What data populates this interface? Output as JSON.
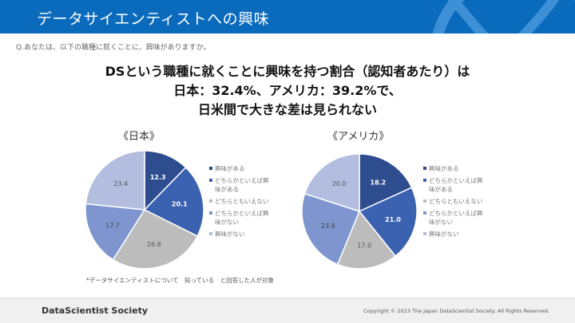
{
  "header": {
    "title": "データサイエンティストへの興味"
  },
  "question": "Q.あなたは、以下の職種に就くことに、興味がありますか。",
  "headline": [
    "DSという職種に就くことに興味を持つ割合（認知者あたり）は",
    "日本：32.4%、アメリカ：39.2%で、",
    "日米間で大きな差は見られない"
  ],
  "colors": [
    "#2e4d8e",
    "#3b62b0",
    "#bcbcbc",
    "#7e95cf",
    "#b3bde0"
  ],
  "chart_data": [
    {
      "type": "pie",
      "title": "《日本》",
      "categories": [
        "興味がある",
        "どちらかといえば興味がある",
        "どちらともいえない",
        "どちらかといえば興味がない",
        "興味がない"
      ],
      "values": [
        12.3,
        20.1,
        26.6,
        17.7,
        23.4
      ],
      "legend": "right"
    },
    {
      "type": "pie",
      "title": "《アメリカ》",
      "categories": [
        "興味がある",
        "どちらかといえば興味がある",
        "どちらともいえない",
        "どちらかといえば興味がない",
        "興味がない"
      ],
      "values": [
        18.2,
        21.0,
        17.0,
        23.8,
        20.0
      ],
      "legend": "right"
    }
  ],
  "note": "*データサイエンティストについて　知っている　と回答した人が対象",
  "footer": {
    "brand": "DataScientist Society",
    "copyright": "Copyright © 2023  The Japan DataScientist Society. All Rights Reserved."
  }
}
